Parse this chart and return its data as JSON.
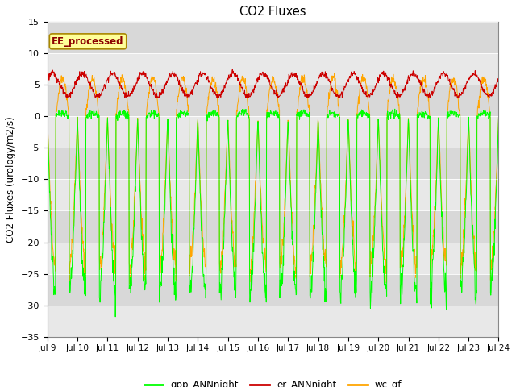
{
  "title": "CO2 Fluxes",
  "ylabel": "CO2 Fluxes (urology/m2/s)",
  "ylim": [
    -35,
    15
  ],
  "yticks": [
    -35,
    -30,
    -25,
    -20,
    -15,
    -10,
    -5,
    0,
    5,
    10,
    15
  ],
  "xtick_labels": [
    "Jul 9",
    "Jul 10",
    "Jul 11",
    "Jul 12",
    "Jul 13",
    "Jul 14",
    "Jul 15",
    "Jul 16",
    "Jul 17",
    "Jul 18",
    "Jul 19",
    "Jul 20",
    "Jul 21",
    "Jul 22",
    "Jul 23",
    "Jul 24"
  ],
  "n_days": 15,
  "pts_per_day": 96,
  "gpp_color": "#00ff00",
  "er_color": "#cc0000",
  "wc_color": "#ffa500",
  "bg_color_dark": "#d8d8d8",
  "bg_color_light": "#e8e8e8",
  "annotation_text": "EE_processed",
  "annotation_color": "#8b0000",
  "annotation_bg": "#ffff99",
  "legend_labels": [
    "gpp_ANNnight",
    "er_ANNnight",
    "wc_gf"
  ],
  "linewidth": 0.7,
  "figsize": [
    6.4,
    4.8
  ],
  "dpi": 100
}
